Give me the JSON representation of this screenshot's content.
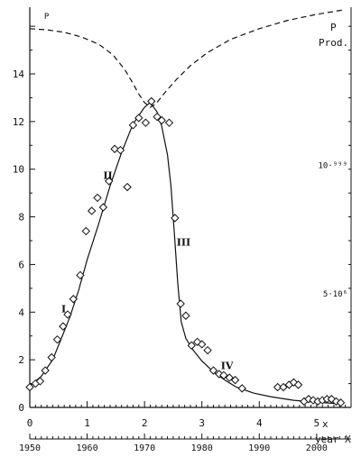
{
  "chart_data": {
    "type": "scatter",
    "title": "",
    "xlabel": "x",
    "xlabel2": "year X",
    "ylabel": "",
    "xlim": [
      0,
      5.6
    ],
    "ylim": [
      0,
      16.8
    ],
    "left_ticks": [
      "0",
      "2",
      "4",
      "6",
      "8",
      "10",
      "12",
      "14"
    ],
    "left_tick_values": [
      0,
      2,
      4,
      6,
      8,
      10,
      12,
      14
    ],
    "bottom_ticks": [
      "0",
      "1",
      "2",
      "3",
      "4",
      "5"
    ],
    "bottom_tick_values": [
      0,
      1,
      2,
      3,
      4,
      5
    ],
    "year_ticks": [
      "1950",
      "1960",
      "1970",
      "1980",
      "1990",
      "2000"
    ],
    "year_tick_values": [
      0,
      1,
      2,
      3,
      4,
      5
    ],
    "right_axis": {
      "title_line1": "P",
      "title_line2": "Prod.",
      "labels": [
        "10·⁹⁹⁹",
        "5·10⁶"
      ],
      "label_values": [
        10.2,
        4.8
      ]
    },
    "annotations": [
      {
        "text": "I",
        "x": 0.55,
        "y": 4.0
      },
      {
        "text": "II",
        "x": 1.28,
        "y": 9.6
      },
      {
        "text": "III",
        "x": 2.56,
        "y": 6.8
      },
      {
        "text": "IV",
        "x": 3.33,
        "y": 1.6
      },
      {
        "text": "P",
        "x": 0.25,
        "y": 16.3
      }
    ],
    "series": [
      {
        "type": "scatter",
        "marker": "diamond",
        "x": [
          0.0,
          0.1,
          0.18,
          0.27,
          0.38,
          0.48,
          0.58,
          0.66,
          0.76,
          0.88,
          0.98,
          1.08,
          1.18,
          1.28,
          1.38,
          1.48,
          1.58,
          1.7,
          1.8,
          1.9,
          2.02,
          2.12,
          2.22,
          2.3,
          2.43,
          2.53,
          2.63,
          2.72,
          2.82,
          2.92,
          3.0,
          3.1,
          3.2,
          3.3,
          3.38,
          3.48,
          3.58,
          3.7,
          4.32,
          4.42,
          4.52,
          4.6,
          4.68,
          4.78,
          4.86,
          4.94,
          5.02,
          5.1,
          5.18,
          5.26,
          5.34,
          5.42
        ],
        "y": [
          0.85,
          1.0,
          1.1,
          1.55,
          2.1,
          2.85,
          3.4,
          3.9,
          4.55,
          5.55,
          7.4,
          8.25,
          8.8,
          8.4,
          9.5,
          10.85,
          10.8,
          9.25,
          11.85,
          12.15,
          11.95,
          12.85,
          12.2,
          12.05,
          11.95,
          7.95,
          4.35,
          3.85,
          2.6,
          2.75,
          2.65,
          2.4,
          1.55,
          1.4,
          1.35,
          1.25,
          1.15,
          0.8,
          0.85,
          0.85,
          0.95,
          1.05,
          0.95,
          0.25,
          0.35,
          0.3,
          0.25,
          0.3,
          0.35,
          0.35,
          0.25,
          0.2
        ]
      },
      {
        "type": "line",
        "style": "solid",
        "x": [
          0.0,
          0.2,
          0.4,
          0.55,
          0.7,
          0.85,
          1.0,
          1.2,
          1.4,
          1.6,
          1.8,
          2.0,
          2.1,
          2.22,
          2.3,
          2.4,
          2.46,
          2.52,
          2.58,
          2.64,
          2.72,
          2.85,
          3.0,
          3.2,
          3.4,
          3.6,
          3.9,
          4.2,
          4.6,
          5.0,
          5.4
        ],
        "y": [
          0.9,
          1.3,
          2.0,
          2.9,
          3.8,
          4.9,
          6.2,
          7.7,
          9.3,
          10.7,
          11.9,
          12.6,
          12.8,
          12.4,
          11.8,
          10.6,
          9.3,
          7.3,
          5.2,
          3.6,
          2.9,
          2.4,
          1.95,
          1.5,
          1.15,
          0.85,
          0.6,
          0.45,
          0.3,
          0.22,
          0.15
        ]
      },
      {
        "type": "line",
        "style": "dashed",
        "x": [
          0.0,
          0.3,
          0.6,
          0.9,
          1.2,
          1.45,
          1.65,
          1.8,
          1.9,
          2.0,
          2.1,
          2.2,
          2.35,
          2.55,
          2.8,
          3.1,
          3.5,
          4.0,
          4.5,
          5.0,
          5.5
        ],
        "y": [
          15.9,
          15.85,
          15.75,
          15.55,
          15.25,
          14.8,
          14.2,
          13.6,
          13.15,
          12.8,
          12.6,
          12.75,
          13.2,
          13.75,
          14.35,
          14.9,
          15.45,
          15.9,
          16.25,
          16.5,
          16.7
        ]
      }
    ]
  }
}
